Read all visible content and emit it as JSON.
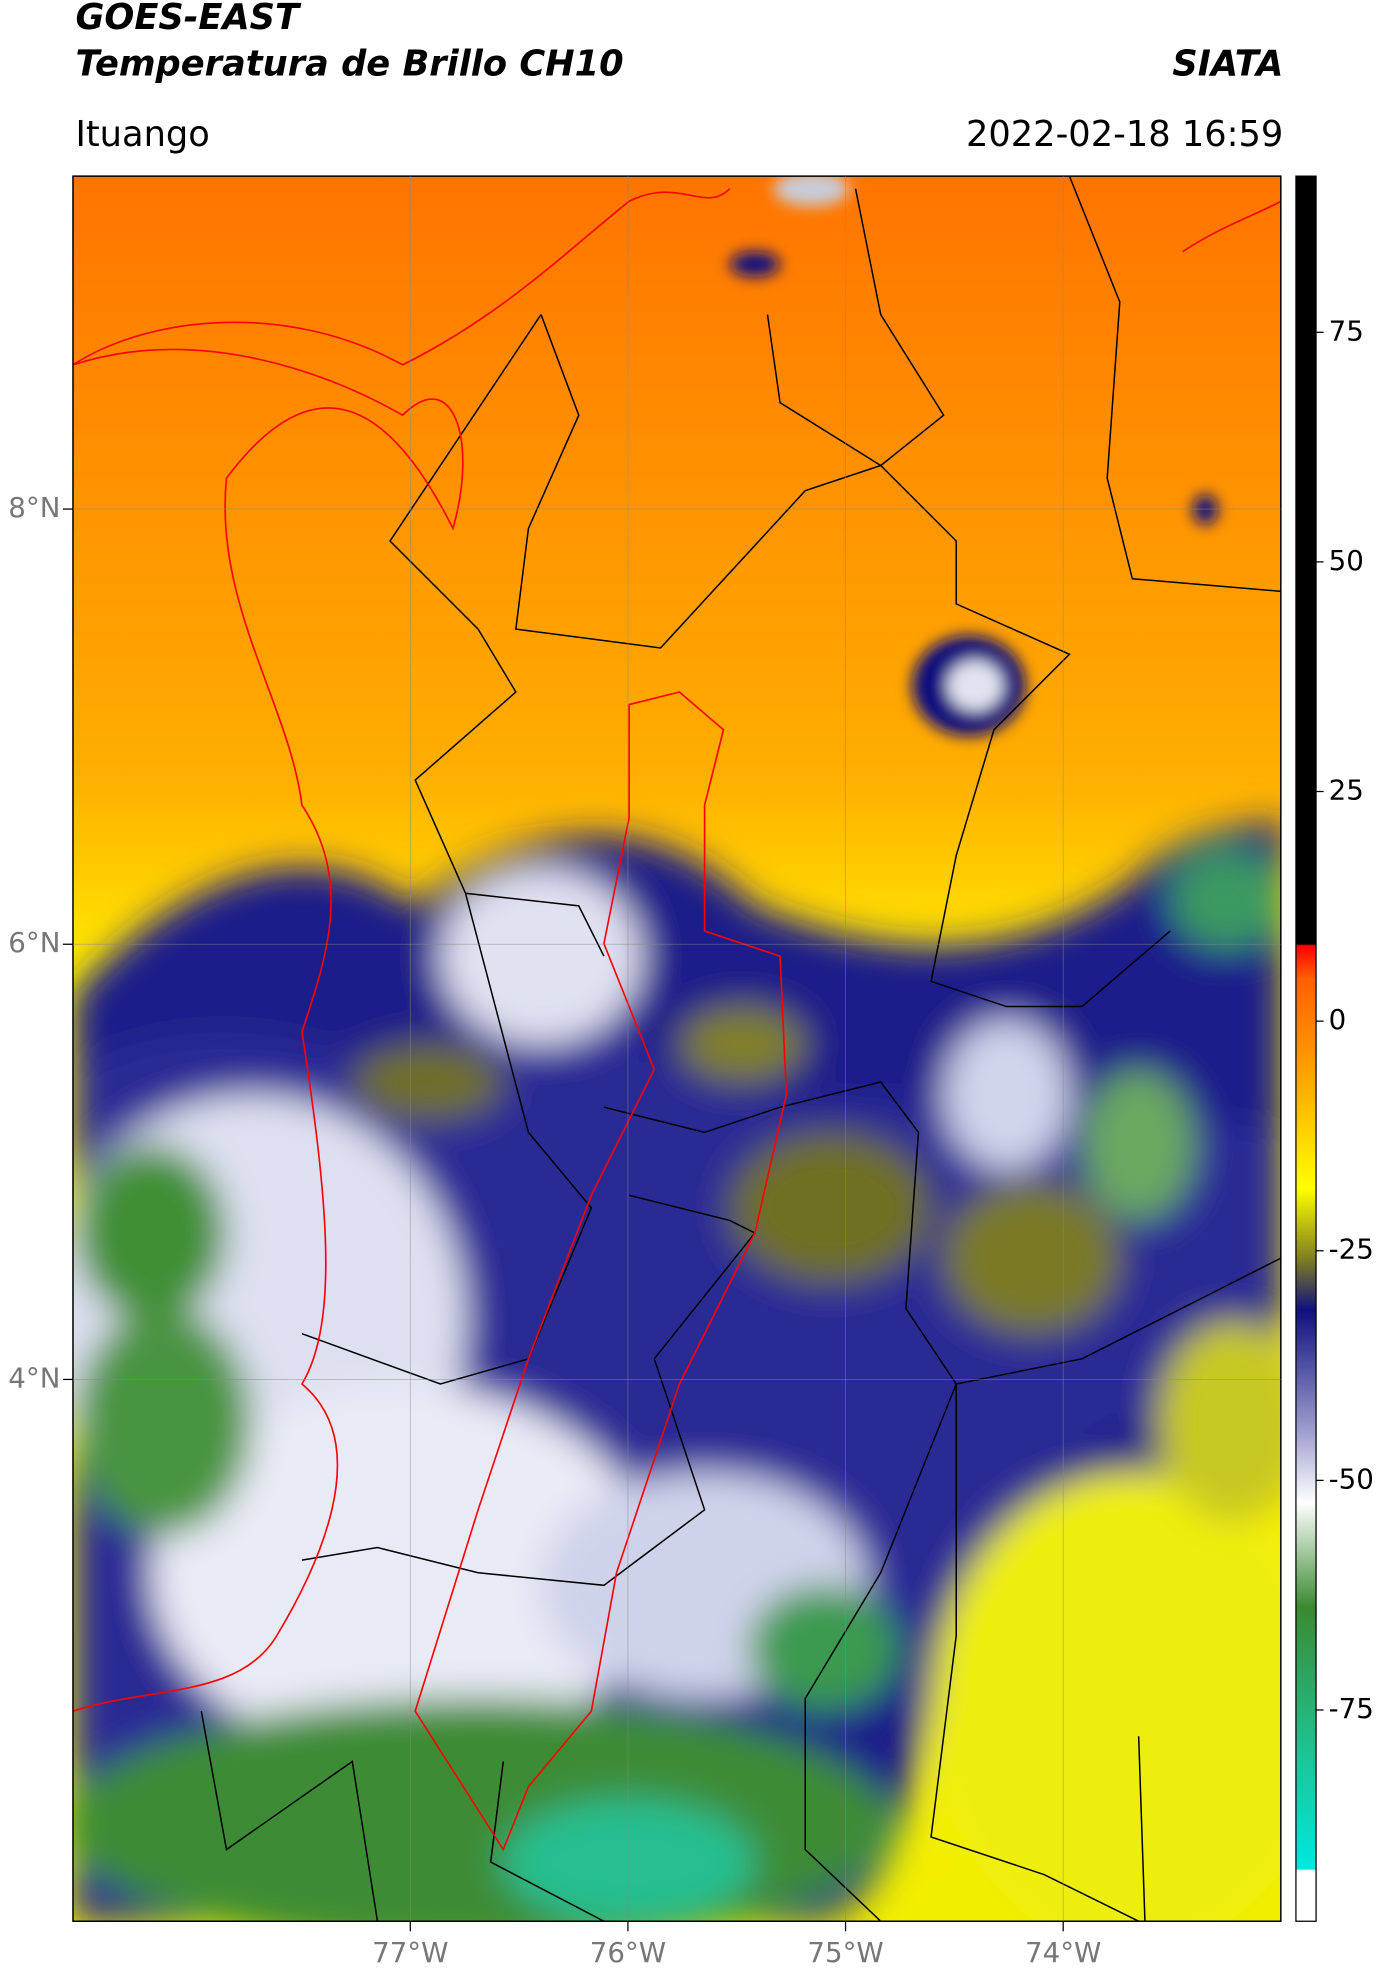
{
  "header": {
    "title_line1": "GOES-EAST",
    "title_line2": "Temperatura de Brillo CH10",
    "org": "SIATA",
    "location": "Ituango",
    "datetime": "2022-02-18 16:59"
  },
  "map": {
    "xlim": [
      -78.55,
      -73.0
    ],
    "ylim": [
      1.51,
      9.53
    ],
    "xticks": [
      {
        "value": -77,
        "label": "77°W"
      },
      {
        "value": -76,
        "label": "76°W"
      },
      {
        "value": -75,
        "label": "75°W"
      },
      {
        "value": -74,
        "label": "74°W"
      }
    ],
    "yticks": [
      {
        "value": 8,
        "label": "8°N"
      },
      {
        "value": 6,
        "label": "6°N"
      },
      {
        "value": 4,
        "label": "4°N"
      }
    ]
  },
  "colorbar": {
    "clim": [
      -98,
      92
    ],
    "ticks": [
      75,
      50,
      25,
      0,
      -25,
      -50,
      -75
    ]
  }
}
